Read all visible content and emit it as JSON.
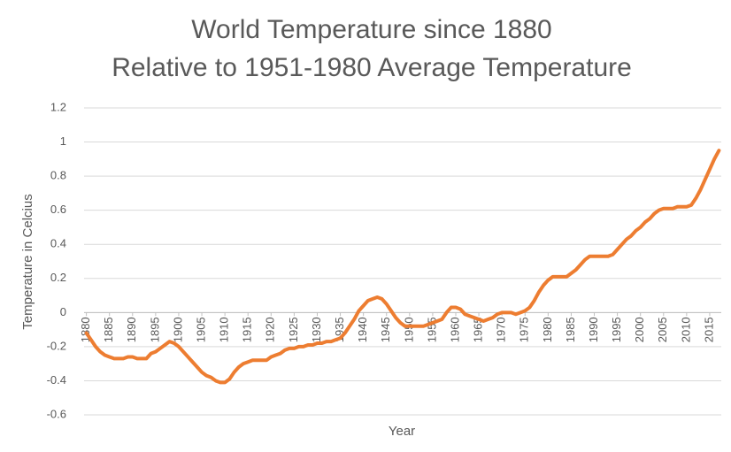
{
  "chart_data": {
    "type": "line",
    "title": [
      "World Temperature since 1880",
      "Relative to 1951-1980 Average Temperature"
    ],
    "x_label": "Year",
    "y_label": "Temperature in Celcius",
    "x": [
      1880,
      1881,
      1882,
      1883,
      1884,
      1885,
      1886,
      1887,
      1888,
      1889,
      1890,
      1891,
      1892,
      1893,
      1894,
      1895,
      1896,
      1897,
      1898,
      1899,
      1900,
      1901,
      1902,
      1903,
      1904,
      1905,
      1906,
      1907,
      1908,
      1909,
      1910,
      1911,
      1912,
      1913,
      1914,
      1915,
      1916,
      1917,
      1918,
      1919,
      1920,
      1921,
      1922,
      1923,
      1924,
      1925,
      1926,
      1927,
      1928,
      1929,
      1930,
      1931,
      1932,
      1933,
      1934,
      1935,
      1936,
      1937,
      1938,
      1939,
      1940,
      1941,
      1942,
      1943,
      1944,
      1945,
      1946,
      1947,
      1948,
      1949,
      1950,
      1951,
      1952,
      1953,
      1954,
      1955,
      1956,
      1957,
      1958,
      1959,
      1960,
      1961,
      1962,
      1963,
      1964,
      1965,
      1966,
      1967,
      1968,
      1969,
      1970,
      1971,
      1972,
      1973,
      1974,
      1975,
      1976,
      1977,
      1978,
      1979,
      1980,
      1981,
      1982,
      1983,
      1984,
      1985,
      1986,
      1987,
      1988,
      1989,
      1990,
      1991,
      1992,
      1993,
      1994,
      1995,
      1996,
      1997,
      1998,
      1999,
      2000,
      2001,
      2002,
      2003,
      2004,
      2005,
      2006,
      2007,
      2008,
      2009,
      2010,
      2011,
      2012,
      2013,
      2014,
      2015,
      2016,
      2017
    ],
    "series": [
      {
        "color": "#ed7d31",
        "values": [
          -0.12,
          -0.16,
          -0.2,
          -0.23,
          -0.25,
          -0.26,
          -0.27,
          -0.27,
          -0.27,
          -0.26,
          -0.26,
          -0.27,
          -0.27,
          -0.27,
          -0.24,
          -0.23,
          -0.21,
          -0.19,
          -0.17,
          -0.18,
          -0.2,
          -0.23,
          -0.26,
          -0.29,
          -0.32,
          -0.35,
          -0.37,
          -0.38,
          -0.4,
          -0.41,
          -0.41,
          -0.39,
          -0.35,
          -0.32,
          -0.3,
          -0.29,
          -0.28,
          -0.28,
          -0.28,
          -0.28,
          -0.26,
          -0.25,
          -0.24,
          -0.22,
          -0.21,
          -0.21,
          -0.2,
          -0.2,
          -0.19,
          -0.19,
          -0.18,
          -0.18,
          -0.17,
          -0.17,
          -0.16,
          -0.15,
          -0.12,
          -0.08,
          -0.04,
          0.01,
          0.04,
          0.07,
          0.08,
          0.09,
          0.08,
          0.05,
          0.01,
          -0.03,
          -0.06,
          -0.08,
          -0.08,
          -0.08,
          -0.08,
          -0.08,
          -0.07,
          -0.06,
          -0.05,
          -0.04,
          0.0,
          0.03,
          0.03,
          0.02,
          -0.01,
          -0.02,
          -0.03,
          -0.04,
          -0.05,
          -0.04,
          -0.03,
          -0.01,
          0.0,
          0.0,
          0.0,
          -0.01,
          0.0,
          0.01,
          0.03,
          0.07,
          0.12,
          0.16,
          0.19,
          0.21,
          0.21,
          0.21,
          0.21,
          0.23,
          0.25,
          0.28,
          0.31,
          0.33,
          0.33,
          0.33,
          0.33,
          0.33,
          0.34,
          0.37,
          0.4,
          0.43,
          0.45,
          0.48,
          0.5,
          0.53,
          0.55,
          0.58,
          0.6,
          0.61,
          0.61,
          0.61,
          0.62,
          0.62,
          0.62,
          0.63,
          0.67,
          0.72,
          0.78,
          0.84,
          0.9,
          0.95
        ]
      }
    ],
    "xlim": [
      1879.5,
      2017.5
    ],
    "xticks": [
      1880,
      1885,
      1890,
      1895,
      1900,
      1905,
      1910,
      1915,
      1920,
      1925,
      1930,
      1935,
      1940,
      1945,
      1950,
      1955,
      1960,
      1965,
      1970,
      1975,
      1980,
      1985,
      1990,
      1995,
      2000,
      2005,
      2010,
      2015
    ],
    "ylim": [
      -0.6,
      1.2
    ],
    "yticks": [
      -0.6,
      -0.4,
      -0.2,
      0,
      0.2,
      0.4,
      0.6,
      0.8,
      1,
      1.2
    ],
    "grid": true
  }
}
